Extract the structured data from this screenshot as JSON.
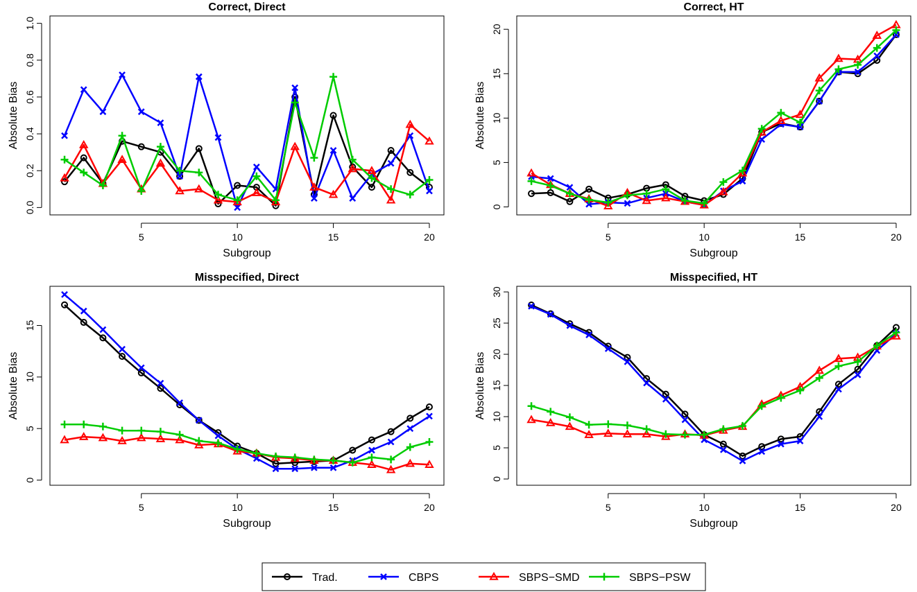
{
  "legend": {
    "entries": [
      {
        "label": "Trad.",
        "color": "#000000",
        "marker": "circle"
      },
      {
        "label": "CBPS",
        "color": "#0000ff",
        "marker": "x"
      },
      {
        "label": "SBPS−SMD",
        "color": "#ff0000",
        "marker": "triangle"
      },
      {
        "label": "SBPS−PSW",
        "color": "#00cc00",
        "marker": "plus"
      }
    ]
  },
  "chart_data": [
    {
      "type": "line",
      "title": "Correct, Direct",
      "xlabel": "Subgroup",
      "ylabel": "Absolute Bias",
      "x": [
        1,
        2,
        3,
        4,
        5,
        6,
        7,
        8,
        9,
        10,
        11,
        12,
        13,
        14,
        15,
        16,
        17,
        18,
        19,
        20
      ],
      "xticks": [
        5,
        10,
        15,
        20
      ],
      "yticks": [
        0.0,
        0.2,
        0.4,
        0.6,
        0.8,
        1.0
      ],
      "ytick_labels": [
        "0.0",
        "0.2",
        "0.4",
        "0.6",
        "0.8",
        "1.0"
      ],
      "xlim": [
        0.24,
        20.76
      ],
      "ylim": [
        -0.04,
        1.04
      ],
      "series": [
        {
          "name": "Trad.",
          "values": [
            0.14,
            0.27,
            0.13,
            0.36,
            0.33,
            0.3,
            0.17,
            0.32,
            0.02,
            0.12,
            0.11,
            0.01,
            0.6,
            0.07,
            0.5,
            0.22,
            0.11,
            0.31,
            0.19,
            0.11
          ]
        },
        {
          "name": "CBPS",
          "values": [
            0.39,
            0.64,
            0.52,
            0.72,
            0.52,
            0.46,
            0.17,
            0.71,
            0.38,
            0.0,
            0.22,
            0.1,
            0.65,
            0.05,
            0.31,
            0.05,
            0.18,
            0.24,
            0.39,
            0.09
          ]
        },
        {
          "name": "SBPS−SMD",
          "values": [
            0.16,
            0.34,
            0.13,
            0.26,
            0.1,
            0.24,
            0.09,
            0.1,
            0.04,
            0.03,
            0.08,
            0.03,
            0.33,
            0.11,
            0.07,
            0.21,
            0.2,
            0.04,
            0.45,
            0.36
          ]
        },
        {
          "name": "SBPS−PSW",
          "values": [
            0.26,
            0.19,
            0.12,
            0.39,
            0.09,
            0.33,
            0.2,
            0.19,
            0.07,
            0.04,
            0.17,
            0.04,
            0.57,
            0.27,
            0.71,
            0.26,
            0.16,
            0.1,
            0.07,
            0.15
          ]
        }
      ]
    },
    {
      "type": "line",
      "title": "Correct, HT",
      "xlabel": "Subgroup",
      "ylabel": "Absolute Bias",
      "x": [
        1,
        2,
        3,
        4,
        5,
        6,
        7,
        8,
        9,
        10,
        11,
        12,
        13,
        14,
        15,
        16,
        17,
        18,
        19,
        20
      ],
      "xticks": [
        5,
        10,
        15,
        20
      ],
      "yticks": [
        0,
        5,
        10,
        15,
        20
      ],
      "ytick_labels": [
        "0",
        "5",
        "10",
        "15",
        "20"
      ],
      "xlim": [
        0.24,
        20.76
      ],
      "ylim": [
        -0.9,
        21.5
      ],
      "series": [
        {
          "name": "Trad.",
          "values": [
            1.5,
            1.6,
            0.6,
            2.0,
            1.0,
            1.4,
            2.1,
            2.5,
            1.2,
            0.7,
            1.4,
            3.2,
            8.4,
            9.4,
            9.0,
            11.9,
            15.2,
            15.0,
            16.5,
            19.4
          ]
        },
        {
          "name": "CBPS",
          "values": [
            3.4,
            3.2,
            2.2,
            0.3,
            0.5,
            0.4,
            1.0,
            1.5,
            0.6,
            0.2,
            1.8,
            2.9,
            7.6,
            9.3,
            9.0,
            11.9,
            15.2,
            15.2,
            17.0,
            19.4
          ]
        },
        {
          "name": "SBPS−SMD",
          "values": [
            3.8,
            2.5,
            1.5,
            0.9,
            0.1,
            1.6,
            0.7,
            1.0,
            0.6,
            0.2,
            1.7,
            3.8,
            8.4,
            9.7,
            10.4,
            14.5,
            16.7,
            16.6,
            19.3,
            20.5
          ]
        },
        {
          "name": "SBPS−PSW",
          "values": [
            2.9,
            2.4,
            1.5,
            0.8,
            0.5,
            1.3,
            1.5,
            2.0,
            0.7,
            0.4,
            2.8,
            4.1,
            8.8,
            10.6,
            9.5,
            13.1,
            15.5,
            16.0,
            17.9,
            19.9
          ]
        }
      ]
    },
    {
      "type": "line",
      "title": "Misspecified, Direct",
      "xlabel": "Subgroup",
      "ylabel": "Absolute Bias",
      "x": [
        1,
        2,
        3,
        4,
        5,
        6,
        7,
        8,
        9,
        10,
        11,
        12,
        13,
        14,
        15,
        16,
        17,
        18,
        19,
        20
      ],
      "xticks": [
        5,
        10,
        15,
        20
      ],
      "yticks": [
        0,
        5,
        10,
        15
      ],
      "ytick_labels": [
        "0",
        "5",
        "10",
        "15"
      ],
      "xlim": [
        0.24,
        20.76
      ],
      "ylim": [
        -0.5,
        18.8
      ],
      "series": [
        {
          "name": "Trad.",
          "values": [
            17.0,
            15.3,
            13.8,
            12.0,
            10.4,
            8.9,
            7.3,
            5.8,
            4.6,
            3.3,
            2.6,
            1.6,
            1.7,
            1.8,
            1.9,
            2.9,
            3.9,
            4.7,
            6.0,
            7.1
          ]
        },
        {
          "name": "CBPS",
          "values": [
            18.0,
            16.4,
            14.6,
            12.7,
            10.9,
            9.4,
            7.5,
            5.8,
            4.3,
            3.0,
            2.1,
            1.1,
            1.1,
            1.2,
            1.2,
            1.9,
            2.9,
            3.7,
            5.0,
            6.2
          ]
        },
        {
          "name": "SBPS−SMD",
          "values": [
            3.9,
            4.2,
            4.1,
            3.8,
            4.1,
            4.0,
            3.9,
            3.4,
            3.5,
            2.8,
            2.6,
            2.2,
            2.1,
            1.9,
            1.9,
            1.7,
            1.5,
            1.0,
            1.6,
            1.5
          ]
        },
        {
          "name": "SBPS−PSW",
          "values": [
            5.4,
            5.4,
            5.2,
            4.8,
            4.8,
            4.7,
            4.4,
            3.8,
            3.6,
            3.0,
            2.6,
            2.3,
            2.2,
            2.0,
            1.9,
            1.7,
            2.2,
            2.0,
            3.2,
            3.7
          ]
        }
      ]
    },
    {
      "type": "line",
      "title": "Misspecified, HT",
      "xlabel": "Subgroup",
      "ylabel": "Absolute Bias",
      "x": [
        1,
        2,
        3,
        4,
        5,
        6,
        7,
        8,
        9,
        10,
        11,
        12,
        13,
        14,
        15,
        16,
        17,
        18,
        19,
        20
      ],
      "xticks": [
        5,
        10,
        15,
        20
      ],
      "yticks": [
        0,
        5,
        10,
        15,
        20,
        25,
        30
      ],
      "ytick_labels": [
        "0",
        "5",
        "10",
        "15",
        "20",
        "25",
        "30"
      ],
      "xlim": [
        0.24,
        20.76
      ],
      "ylim": [
        -1.0,
        30.9
      ],
      "series": [
        {
          "name": "Trad.",
          "values": [
            27.9,
            26.5,
            24.9,
            23.5,
            21.3,
            19.5,
            16.1,
            13.6,
            10.4,
            7.1,
            5.6,
            3.7,
            5.2,
            6.4,
            6.8,
            10.8,
            15.2,
            17.6,
            21.4,
            24.3
          ]
        },
        {
          "name": "CBPS",
          "values": [
            27.7,
            26.4,
            24.6,
            23.1,
            20.9,
            18.8,
            15.4,
            12.8,
            9.5,
            6.3,
            4.7,
            2.9,
            4.4,
            5.6,
            6.1,
            10.0,
            14.4,
            16.7,
            20.6,
            23.3
          ]
        },
        {
          "name": "SBPS−SMD",
          "values": [
            9.5,
            9.0,
            8.4,
            7.1,
            7.3,
            7.2,
            7.2,
            6.8,
            7.2,
            7.0,
            7.8,
            8.4,
            12.0,
            13.4,
            14.8,
            17.4,
            19.3,
            19.5,
            21.3,
            22.9
          ]
        },
        {
          "name": "SBPS−PSW",
          "values": [
            11.7,
            10.8,
            9.9,
            8.7,
            8.8,
            8.6,
            8.0,
            7.2,
            7.1,
            7.1,
            8.0,
            8.5,
            11.7,
            13.0,
            14.2,
            16.2,
            18.1,
            18.8,
            21.4,
            23.5
          ]
        }
      ]
    }
  ]
}
